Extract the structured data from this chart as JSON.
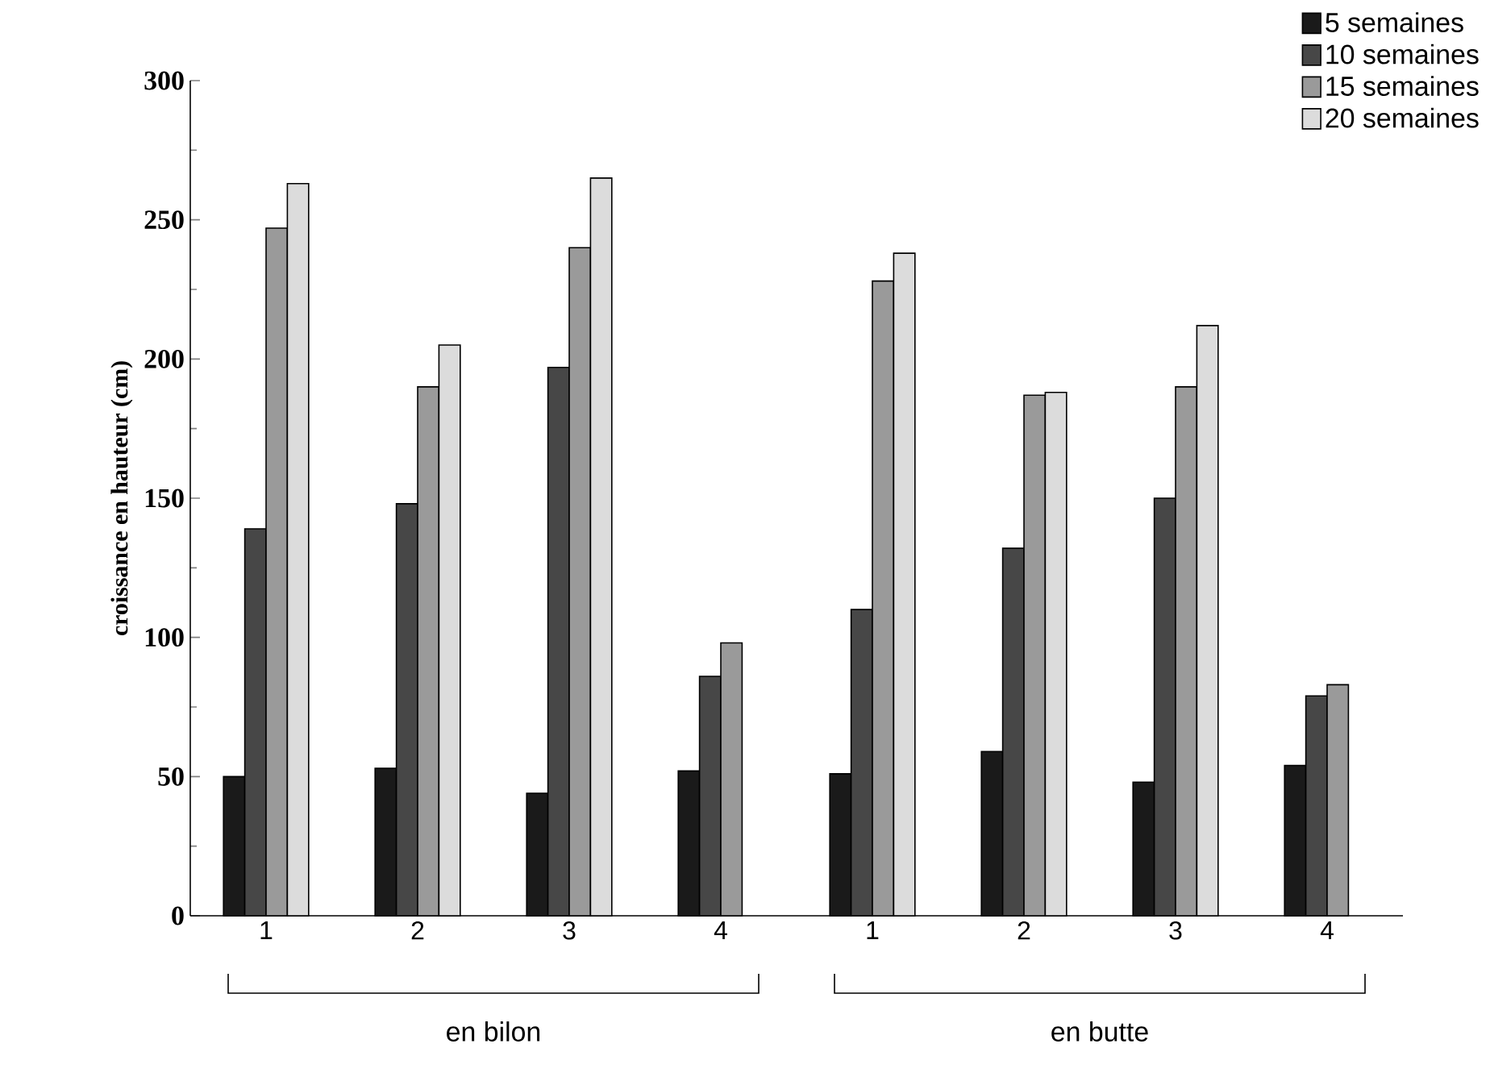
{
  "chart_data": {
    "type": "bar",
    "ylabel": "croissance en hauteur (cm)",
    "categories": [
      "1",
      "2",
      "3",
      "4",
      "1",
      "2",
      "3",
      "4"
    ],
    "series": [
      {
        "name": "5 semaines",
        "color": "#1a1a1a",
        "values": [
          50,
          53,
          44,
          52,
          51,
          59,
          48,
          54
        ]
      },
      {
        "name": "10 semaines",
        "color": "#474747",
        "values": [
          139,
          148,
          197,
          86,
          110,
          132,
          150,
          79
        ]
      },
      {
        "name": "15 semaines",
        "color": "#9a9a9a",
        "values": [
          247,
          190,
          240,
          98,
          228,
          187,
          190,
          83
        ]
      },
      {
        "name": "20 semaines",
        "color": "#dcdcdc",
        "values": [
          263,
          205,
          265,
          null,
          238,
          188,
          212,
          null
        ]
      }
    ],
    "ylim": [
      0,
      300
    ],
    "yticks": [
      0,
      50,
      100,
      150,
      200,
      250,
      300
    ],
    "grid": false,
    "legend": "top right",
    "annotations": [
      "en bilon",
      "en butte"
    ]
  }
}
